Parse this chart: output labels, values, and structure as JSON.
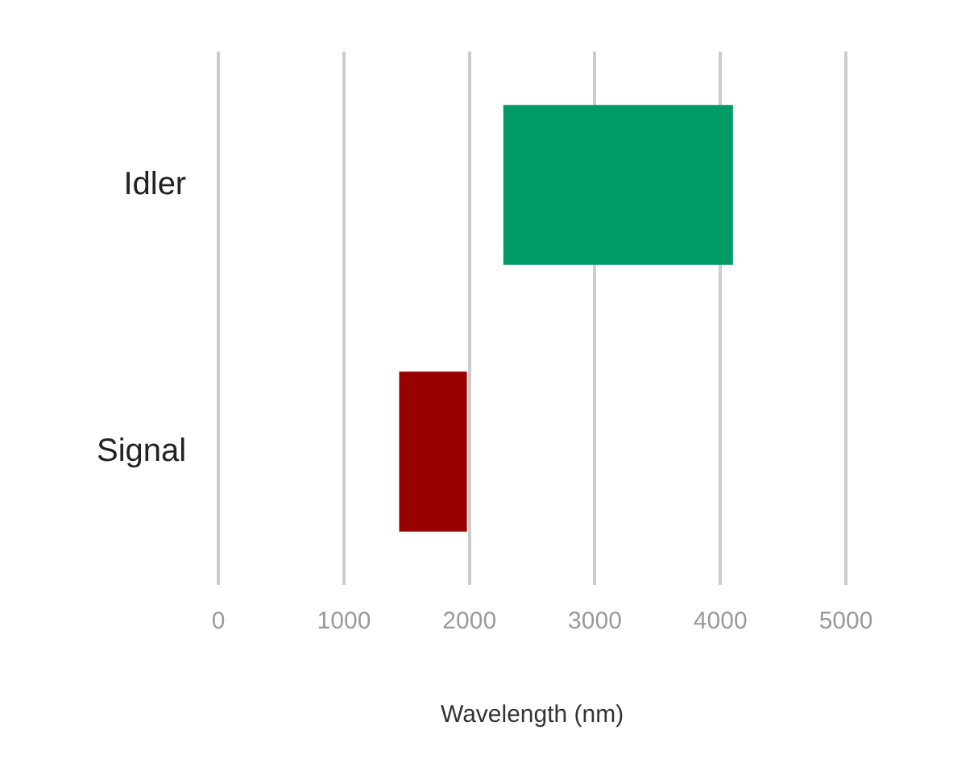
{
  "chart_data": {
    "type": "bar",
    "orientation": "horizontal",
    "xlabel": "Wavelength (nm)",
    "categories": [
      "Idler",
      "Signal"
    ],
    "values": [
      1830,
      540
    ],
    "base": [
      2270,
      1440
    ],
    "colors": [
      "#009b67",
      "#990000"
    ],
    "xlim": [
      0,
      5000
    ],
    "xticks": [
      0,
      1000,
      2000,
      3000,
      4000,
      5000
    ],
    "grid": "x",
    "legend": false
  }
}
